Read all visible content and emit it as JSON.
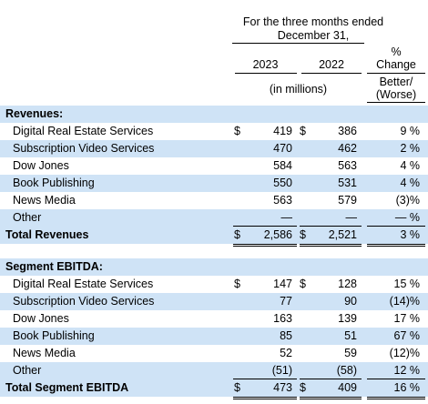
{
  "header": {
    "period_line1": "For the three months ended",
    "period_line2": "December 31,",
    "pct_line1": "%",
    "pct_line2": "Change",
    "year_2023": "2023",
    "year_2022": "2022",
    "units": "(in millions)",
    "better_line1": "Better/",
    "better_line2": "(Worse)"
  },
  "revenues": {
    "heading": "Revenues:",
    "rows": [
      {
        "label": "Digital Real Estate Services",
        "cur1": "$",
        "v2023": "419",
        "cur2": "$",
        "v2022": "386",
        "pct": "9 %"
      },
      {
        "label": "Subscription Video Services",
        "cur1": "",
        "v2023": "470",
        "cur2": "",
        "v2022": "462",
        "pct": "2 %"
      },
      {
        "label": "Dow Jones",
        "cur1": "",
        "v2023": "584",
        "cur2": "",
        "v2022": "563",
        "pct": "4 %"
      },
      {
        "label": "Book Publishing",
        "cur1": "",
        "v2023": "550",
        "cur2": "",
        "v2022": "531",
        "pct": "4 %"
      },
      {
        "label": "News Media",
        "cur1": "",
        "v2023": "563",
        "cur2": "",
        "v2022": "579",
        "pct": "(3)%"
      },
      {
        "label": "Other",
        "cur1": "",
        "v2023": "—",
        "cur2": "",
        "v2022": "—",
        "pct": "— %"
      }
    ],
    "total": {
      "label": "Total Revenues",
      "cur1": "$",
      "v2023": "2,586",
      "cur2": "$",
      "v2022": "2,521",
      "pct": "3 %"
    }
  },
  "ebitda": {
    "heading": "Segment EBITDA:",
    "rows": [
      {
        "label": "Digital Real Estate Services",
        "cur1": "$",
        "v2023": "147",
        "cur2": "$",
        "v2022": "128",
        "pct": "15 %"
      },
      {
        "label": "Subscription Video Services",
        "cur1": "",
        "v2023": "77",
        "cur2": "",
        "v2022": "90",
        "pct": "(14)%"
      },
      {
        "label": "Dow Jones",
        "cur1": "",
        "v2023": "163",
        "cur2": "",
        "v2022": "139",
        "pct": "17 %"
      },
      {
        "label": "Book Publishing",
        "cur1": "",
        "v2023": "85",
        "cur2": "",
        "v2022": "51",
        "pct": "67 %"
      },
      {
        "label": "News Media",
        "cur1": "",
        "v2023": "52",
        "cur2": "",
        "v2022": "59",
        "pct": "(12)%"
      },
      {
        "label": "Other",
        "cur1": "",
        "v2023": "(51)",
        "cur2": "",
        "v2022": "(58)",
        "pct": "12 %"
      }
    ],
    "total": {
      "label": "Total Segment EBITDA",
      "cur1": "$",
      "v2023": "473",
      "cur2": "$",
      "v2022": "409",
      "pct": "16 %"
    }
  }
}
